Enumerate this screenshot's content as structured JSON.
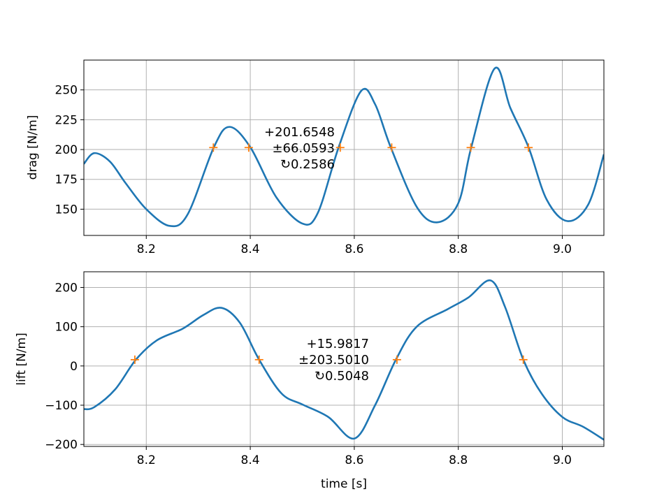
{
  "chart_data": [
    {
      "type": "line",
      "ylabel": "drag [N/m]",
      "xlabel": "",
      "xlim": [
        8.08,
        9.08
      ],
      "ylim": [
        128,
        275
      ],
      "xticks": [
        8.2,
        8.4,
        8.6,
        8.8,
        9.0
      ],
      "xtick_labels": [
        "8.2",
        "8.4",
        "8.6",
        "8.8",
        "9.0"
      ],
      "yticks": [
        150,
        175,
        200,
        225,
        250
      ],
      "ytick_labels": [
        "150",
        "175",
        "200",
        "225",
        "250"
      ],
      "grid": true,
      "line_color": "#1f77b4",
      "marker_color": "#ff7f0e",
      "series": [
        {
          "x": [
            8.08,
            8.1,
            8.13,
            8.16,
            8.2,
            8.245,
            8.28,
            8.33,
            8.36,
            8.4,
            8.45,
            8.5,
            8.53,
            8.57,
            8.613,
            8.64,
            8.67,
            8.72,
            8.76,
            8.8,
            8.825,
            8.87,
            8.9,
            8.935,
            8.97,
            9.01,
            9.05,
            9.08
          ],
          "y": [
            188,
            197,
            190,
            172,
            150,
            136,
            146,
            202,
            219,
            202,
            160,
            138,
            147,
            202,
            249,
            238,
            202,
            152,
            139,
            155,
            202,
            268,
            235,
            202,
            158,
            140,
            154,
            196
          ]
        }
      ],
      "markers": {
        "x": [
          8.329,
          8.397,
          8.573,
          8.672,
          8.824,
          8.935
        ],
        "y": [
          201.65,
          201.65,
          201.65,
          201.65,
          201.65,
          201.65
        ]
      },
      "annotation": [
        "+201.6548",
        "±66.0593",
        "↻0.2586"
      ],
      "annotation_anchor": [
        8.49,
        201.65
      ]
    },
    {
      "type": "line",
      "ylabel": "lift [N/m]",
      "xlabel": "time [s]",
      "xlim": [
        8.08,
        9.08
      ],
      "ylim": [
        -205,
        240
      ],
      "xticks": [
        8.2,
        8.4,
        8.6,
        8.8,
        9.0
      ],
      "xtick_labels": [
        "8.2",
        "8.4",
        "8.6",
        "8.8",
        "9.0"
      ],
      "yticks": [
        -200,
        -100,
        0,
        100,
        200
      ],
      "ytick_labels": [
        "−200",
        "−100",
        "0",
        "100",
        "200"
      ],
      "grid": true,
      "line_color": "#1f77b4",
      "marker_color": "#ff7f0e",
      "series": [
        {
          "x": [
            8.08,
            8.1,
            8.14,
            8.18,
            8.22,
            8.27,
            8.31,
            8.345,
            8.38,
            8.417,
            8.46,
            8.5,
            8.55,
            8.6,
            8.64,
            8.68,
            8.72,
            8.78,
            8.82,
            8.862,
            8.89,
            8.925,
            8.96,
            9.0,
            9.04,
            9.08
          ],
          "y": [
            -110,
            -105,
            -60,
            16,
            65,
            95,
            130,
            148,
            110,
            16,
            -70,
            -98,
            -130,
            -185,
            -100,
            16,
            100,
            145,
            175,
            218,
            150,
            16,
            -70,
            -130,
            -155,
            -188
          ]
        }
      ],
      "markers": {
        "x": [
          8.178,
          8.417,
          8.682,
          8.925
        ],
        "y": [
          15.98,
          15.98,
          15.98,
          15.98
        ]
      },
      "annotation": [
        "+15.9817",
        "±203.5010",
        "↻0.5048"
      ],
      "annotation_anchor": [
        8.555,
        15.98
      ]
    }
  ]
}
